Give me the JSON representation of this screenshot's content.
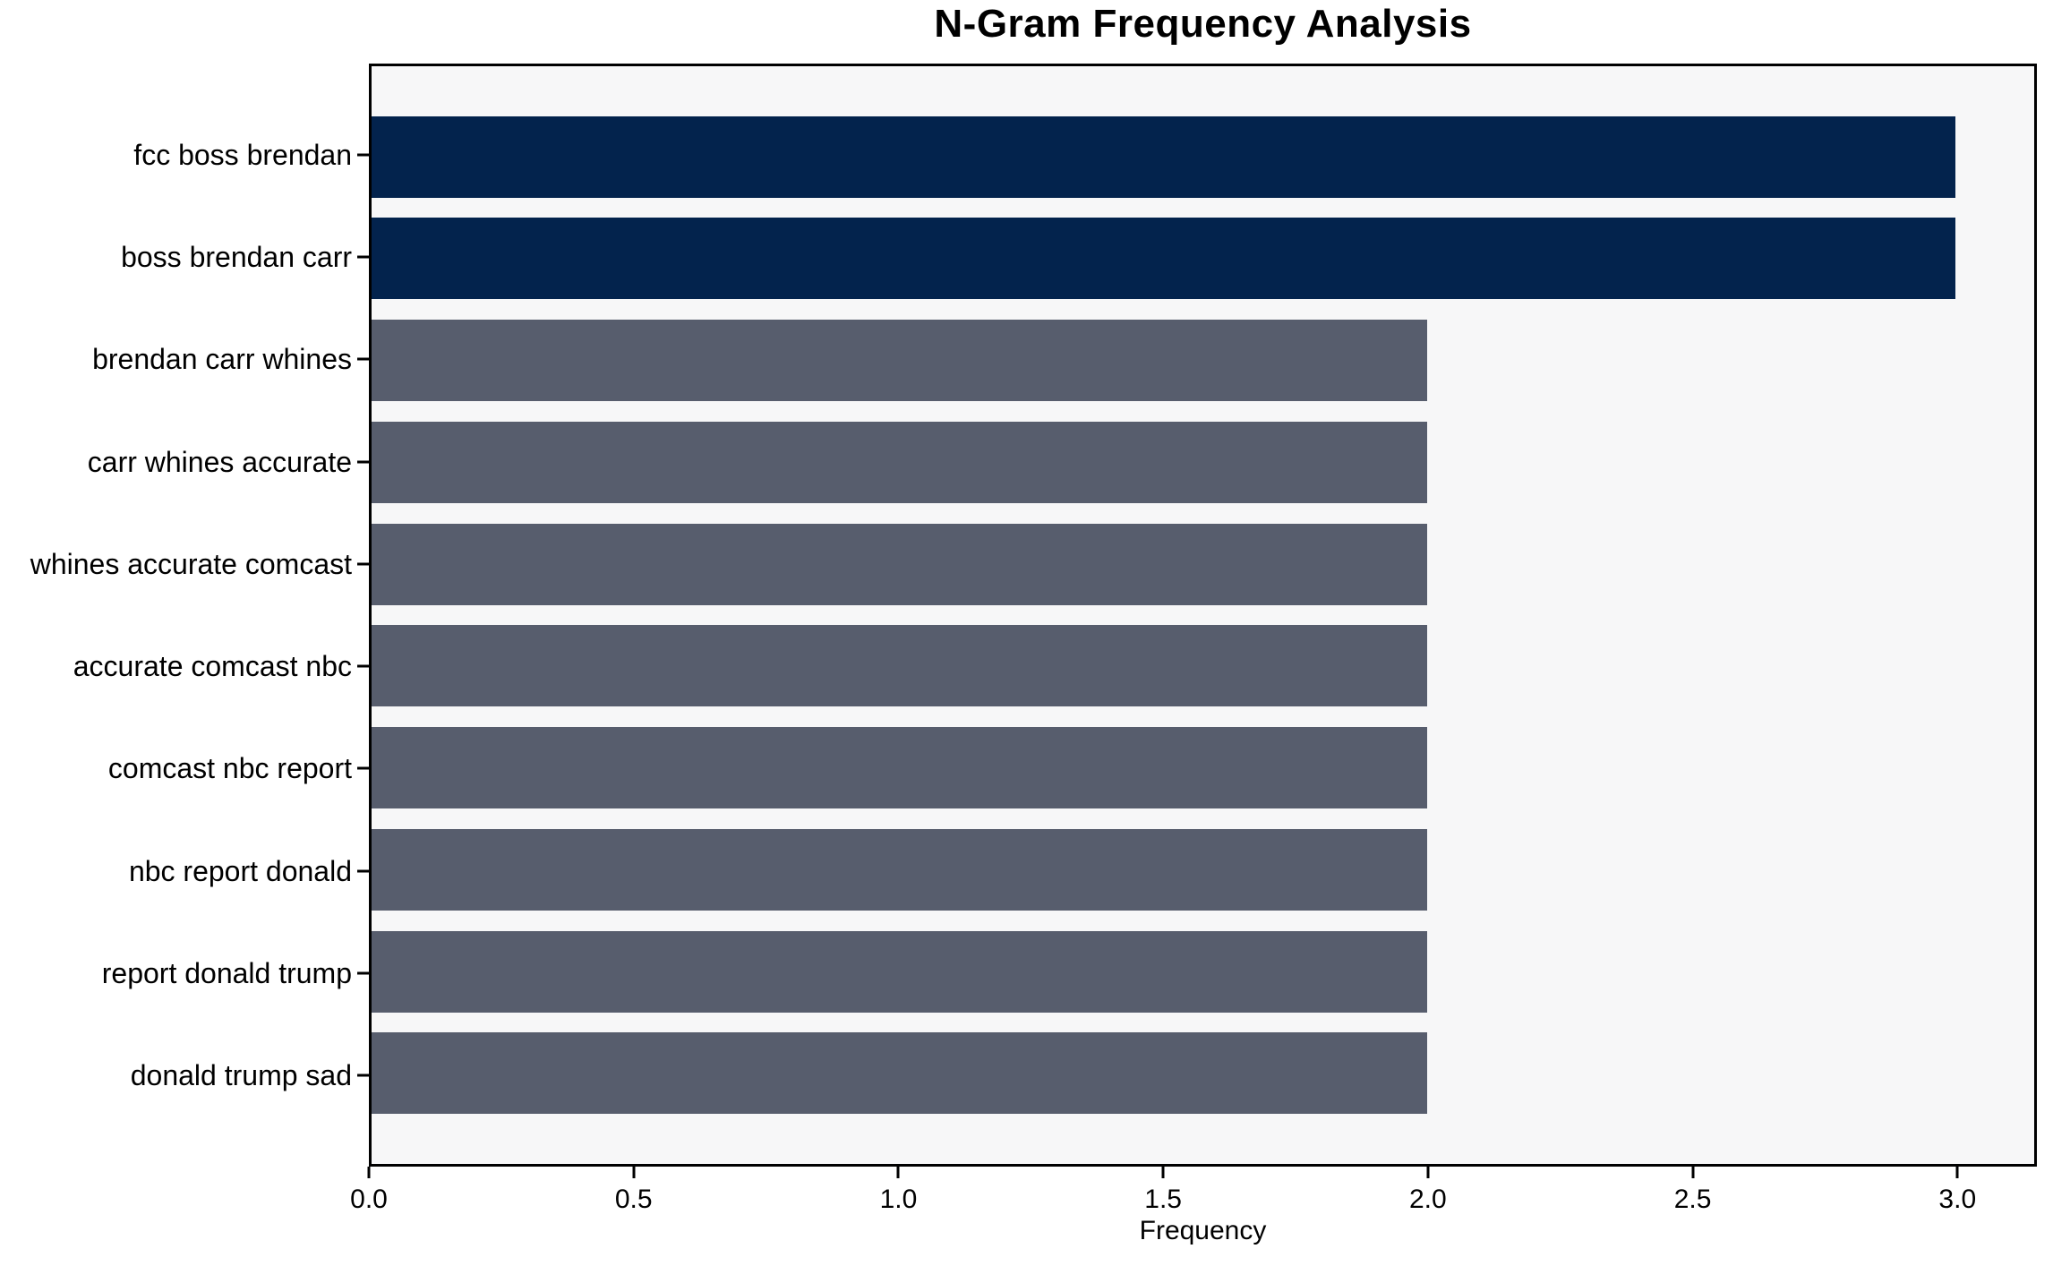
{
  "figure": {
    "background": "#ffffff"
  },
  "chart_data": {
    "type": "bar",
    "orientation": "horizontal",
    "title": "N-Gram Frequency Analysis",
    "xlabel": "Frequency",
    "ylabel": "",
    "categories": [
      "fcc boss brendan",
      "boss brendan carr",
      "brendan carr whines",
      "carr whines accurate",
      "whines accurate comcast",
      "accurate comcast nbc",
      "comcast nbc report",
      "nbc report donald",
      "report donald trump",
      "donald trump sad"
    ],
    "values": [
      3,
      3,
      2,
      2,
      2,
      2,
      2,
      2,
      2,
      2
    ],
    "bar_colors": [
      "#03234d",
      "#03234d",
      "#575d6d",
      "#575d6d",
      "#575d6d",
      "#575d6d",
      "#575d6d",
      "#575d6d",
      "#575d6d",
      "#575d6d"
    ],
    "xticks": [
      0.0,
      0.5,
      1.0,
      1.5,
      2.0,
      2.5,
      3.0
    ],
    "xtick_labels": [
      "0.0",
      "0.5",
      "1.0",
      "1.5",
      "2.0",
      "2.5",
      "3.0"
    ],
    "xlim": [
      0,
      3.15
    ],
    "grid": false,
    "legend": null,
    "plot_background": "#f7f7f8",
    "bar_height_frac": 0.8,
    "y_outer_pad": 0.49,
    "accent_color_high": "#03234d",
    "accent_color_low": "#575d6d"
  }
}
